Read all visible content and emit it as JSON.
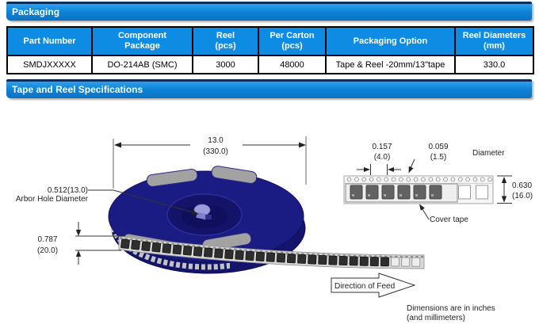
{
  "sections": {
    "packaging": "Packaging",
    "tape_reel": "Tape and Reel Specifications"
  },
  "table": {
    "headers": [
      {
        "l1": "Part Number",
        "l2": ""
      },
      {
        "l1": "Component",
        "l2": "Package"
      },
      {
        "l1": "Reel",
        "l2": "(pcs)"
      },
      {
        "l1": "Per Carton",
        "l2": "(pcs)"
      },
      {
        "l1": "Packaging Option",
        "l2": ""
      },
      {
        "l1": "Reel Diameters",
        "l2": "(mm)"
      }
    ],
    "row": [
      "SMDJXXXXX",
      "DO-214AB (SMC)",
      "3000",
      "48000",
      "Tape & Reel -20mm/13\"tape",
      "330.0"
    ]
  },
  "diagram": {
    "reel_width": {
      "inches": "13.0",
      "mm": "(330.0)"
    },
    "arbor": {
      "dim": "0.512(13.0)",
      "label": "Arbor Hole Diameter"
    },
    "thickness": {
      "inches": "0.787",
      "mm": "(20.0)"
    },
    "pitch": {
      "inches": "0.157",
      "mm": "(4.0)"
    },
    "hole": {
      "inches": "0.059",
      "mm": "(1.5)",
      "label": "Diameter"
    },
    "tape_width": {
      "inches": "0.630",
      "mm": "(16.0)"
    },
    "cover_tape": "Cover tape",
    "direction_of_feed": "Direction of Feed",
    "note": {
      "line1": "Dimensions are in inches",
      "line2": "(and millimeters)"
    }
  },
  "colors": {
    "title_bar_blue": "#0d84d8",
    "title_bar_dark_edge": "#0e2f5c",
    "table_header_blue": "#0e8ce4",
    "reel_navy": "#1b1b84",
    "slot_gray": "#a2a2a2",
    "pocket_dark": "#4f4f4f"
  }
}
